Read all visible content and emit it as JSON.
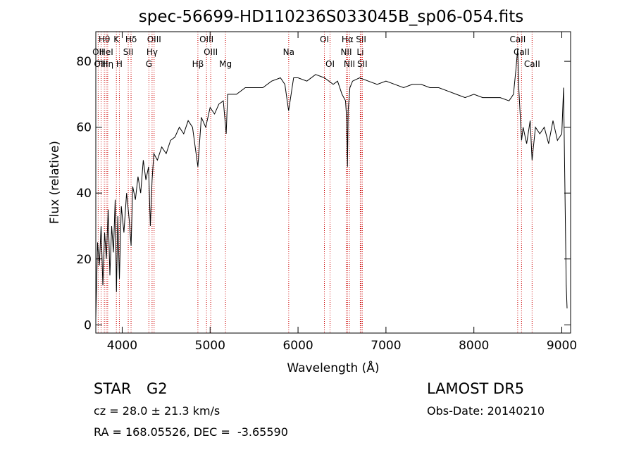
{
  "chart_data": {
    "type": "line",
    "title": "spec-56699-HD110236S033045B_sp06-054.fits",
    "xlabel": "Wavelength (Å)",
    "ylabel": "Flux (relative)",
    "xlim": [
      3700,
      9100
    ],
    "ylim": [
      -2.5,
      89
    ],
    "xticks": [
      4000,
      5000,
      6000,
      7000,
      8000,
      9000
    ],
    "yticks": [
      0,
      20,
      40,
      60,
      80
    ],
    "grid": false,
    "line_color": "#000000",
    "marker_color": "#cc0000",
    "series": [
      {
        "x": [
          3700,
          3720,
          3740,
          3760,
          3780,
          3800,
          3820,
          3840,
          3860,
          3880,
          3900,
          3920,
          3935,
          3950,
          3968,
          3990,
          4020,
          4050,
          4080,
          4101,
          4120,
          4150,
          4180,
          4210,
          4240,
          4270,
          4300,
          4320,
          4340,
          4360,
          4400,
          4450,
          4500,
          4550,
          4600,
          4650,
          4700,
          4750,
          4800,
          4861,
          4900,
          4950,
          5000,
          5050,
          5100,
          5150,
          5183,
          5200,
          5300,
          5400,
          5500,
          5600,
          5700,
          5800,
          5850,
          5893,
          5950,
          6000,
          6100,
          6200,
          6300,
          6400,
          6450,
          6500,
          6540,
          6555,
          6563,
          6570,
          6590,
          6620,
          6700,
          6800,
          6900,
          7000,
          7100,
          7200,
          7300,
          7400,
          7500,
          7600,
          7700,
          7800,
          7900,
          8000,
          8100,
          8200,
          8300,
          8400,
          8450,
          8480,
          8498,
          8510,
          8530,
          8542,
          8560,
          8600,
          8640,
          8662,
          8700,
          8750,
          8800,
          8850,
          8900,
          8950,
          9000,
          9020,
          9050,
          9060
        ],
        "y": [
          2,
          25,
          18,
          30,
          12,
          28,
          20,
          35,
          15,
          30,
          22,
          38,
          10,
          33,
          14,
          36,
          28,
          40,
          32,
          24,
          42,
          38,
          45,
          40,
          50,
          44,
          48,
          30,
          44,
          52,
          50,
          54,
          52,
          56,
          57,
          60,
          58,
          62,
          60,
          48,
          63,
          60,
          66,
          64,
          67,
          68,
          58,
          70,
          70,
          72,
          72,
          72,
          74,
          75,
          73,
          65,
          75,
          75,
          74,
          76,
          75,
          73,
          74,
          70,
          68,
          62,
          48,
          65,
          72,
          74,
          75,
          74,
          73,
          74,
          73,
          72,
          73,
          73,
          72,
          72,
          71,
          70,
          69,
          70,
          69,
          69,
          69,
          68,
          70,
          78,
          84,
          72,
          62,
          56,
          60,
          55,
          62,
          50,
          60,
          58,
          60,
          55,
          62,
          56,
          58,
          72,
          12,
          5
        ]
      }
    ],
    "spectral_lines": [
      {
        "label": "Hθ",
        "wavelength": 3797,
        "row": 0
      },
      {
        "label": "OII",
        "wavelength": 3727,
        "row": 1
      },
      {
        "label": "OIII",
        "wavelength": 3760,
        "row": 2
      },
      {
        "label": "HeI",
        "wavelength": 3819,
        "row": 1
      },
      {
        "label": "Hη",
        "wavelength": 3835,
        "row": 2
      },
      {
        "label": "K",
        "wavelength": 3934,
        "row": 0
      },
      {
        "label": "H",
        "wavelength": 3968,
        "row": 2
      },
      {
        "label": "SII",
        "wavelength": 4069,
        "row": 1
      },
      {
        "label": "Hδ",
        "wavelength": 4101,
        "row": 0
      },
      {
        "label": "OIII",
        "wavelength": 4363,
        "row": 0
      },
      {
        "label": "Hγ",
        "wavelength": 4340,
        "row": 1
      },
      {
        "label": "G",
        "wavelength": 4304,
        "row": 2
      },
      {
        "label": "Hβ",
        "wavelength": 4861,
        "row": 2
      },
      {
        "label": "OIII",
        "wavelength": 4959,
        "row": 0
      },
      {
        "label": "OIII",
        "wavelength": 5007,
        "row": 1
      },
      {
        "label": "Mg",
        "wavelength": 5175,
        "row": 2
      },
      {
        "label": "Na",
        "wavelength": 5894,
        "row": 1
      },
      {
        "label": "OI",
        "wavelength": 6300,
        "row": 0
      },
      {
        "label": "OI",
        "wavelength": 6364,
        "row": 2
      },
      {
        "label": "Hα",
        "wavelength": 6563,
        "row": 0
      },
      {
        "label": "NII",
        "wavelength": 6548,
        "row": 1
      },
      {
        "label": "NII",
        "wavelength": 6584,
        "row": 2
      },
      {
        "label": "SII",
        "wavelength": 6717,
        "row": 0
      },
      {
        "label": "Li",
        "wavelength": 6708,
        "row": 1
      },
      {
        "label": "SII",
        "wavelength": 6731,
        "row": 2
      },
      {
        "label": "CaII",
        "wavelength": 8498,
        "row": 0
      },
      {
        "label": "CaII",
        "wavelength": 8542,
        "row": 1
      },
      {
        "label": "CaII",
        "wavelength": 8662,
        "row": 2
      }
    ]
  },
  "info": {
    "object_class": "STAR",
    "subclass": "G2",
    "survey": "LAMOST DR5",
    "cz": "cz = 28.0 ± 21.3 km/s",
    "obs_date": "Obs-Date: 20140210",
    "coords": "RA = 168.05526, DEC =  -3.65590"
  }
}
